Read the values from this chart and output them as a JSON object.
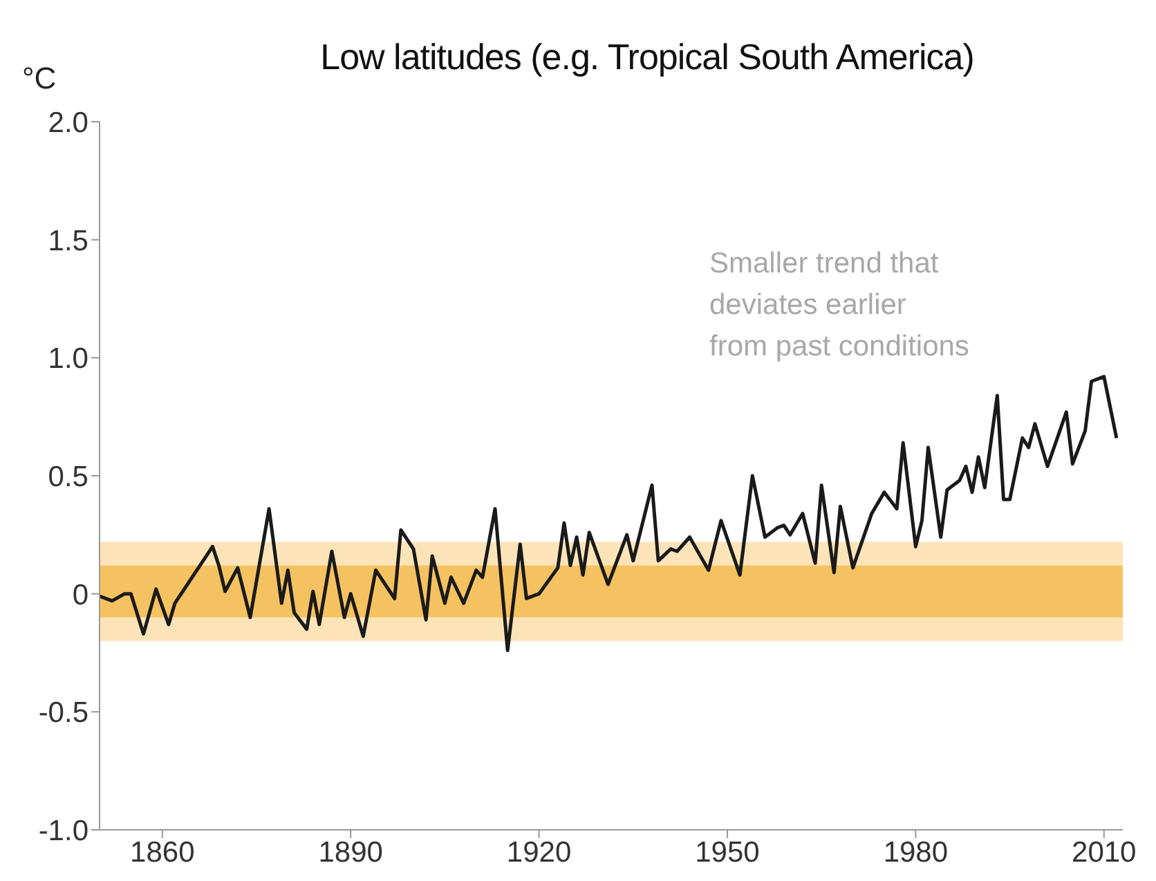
{
  "chart_data": {
    "type": "line",
    "title": "Low latitudes (e.g. Tropical South America)",
    "ylabel": "°C",
    "x": [
      1850,
      1852,
      1854,
      1855,
      1857,
      1859,
      1861,
      1862,
      1868,
      1869,
      1870,
      1872,
      1874,
      1877,
      1879,
      1880,
      1881,
      1883,
      1884,
      1885,
      1887,
      1889,
      1890,
      1892,
      1894,
      1897,
      1898,
      1900,
      1902,
      1903,
      1905,
      1906,
      1908,
      1910,
      1911,
      1913,
      1915,
      1917,
      1918,
      1920,
      1923,
      1924,
      1925,
      1926,
      1927,
      1928,
      1931,
      1934,
      1935,
      1938,
      1939,
      1941,
      1942,
      1944,
      1947,
      1949,
      1952,
      1954,
      1956,
      1958,
      1959,
      1960,
      1962,
      1964,
      1965,
      1967,
      1968,
      1970,
      1973,
      1975,
      1977,
      1978,
      1980,
      1981,
      1982,
      1984,
      1985,
      1987,
      1988,
      1989,
      1990,
      1991,
      1993,
      1994,
      1995,
      1997,
      1998,
      1999,
      2001,
      2004,
      2005,
      2007,
      2008,
      2010,
      2012
    ],
    "series": [
      {
        "color": "#1a1a1a",
        "values": [
          -0.01,
          -0.03,
          0.0,
          0.0,
          -0.17,
          0.02,
          -0.13,
          -0.04,
          0.2,
          0.12,
          0.01,
          0.11,
          -0.1,
          0.36,
          -0.04,
          0.1,
          -0.08,
          -0.15,
          0.01,
          -0.13,
          0.18,
          -0.1,
          0.0,
          -0.18,
          0.1,
          -0.02,
          0.27,
          0.19,
          -0.11,
          0.16,
          -0.04,
          0.07,
          -0.04,
          0.1,
          0.07,
          0.36,
          -0.24,
          0.21,
          -0.02,
          0.0,
          0.11,
          0.3,
          0.12,
          0.24,
          0.08,
          0.26,
          0.04,
          0.25,
          0.14,
          0.46,
          0.14,
          0.19,
          0.18,
          0.24,
          0.1,
          0.31,
          0.08,
          0.5,
          0.24,
          0.28,
          0.29,
          0.25,
          0.34,
          0.13,
          0.46,
          0.09,
          0.37,
          0.11,
          0.34,
          0.43,
          0.36,
          0.64,
          0.2,
          0.31,
          0.62,
          0.24,
          0.44,
          0.48,
          0.54,
          0.43,
          0.58,
          0.45,
          0.84,
          0.4,
          0.4,
          0.66,
          0.62,
          0.72,
          0.54,
          0.77,
          0.55,
          0.69,
          0.9,
          0.92,
          0.66
        ]
      }
    ],
    "bands": [
      {
        "axis": "y",
        "from": -0.2,
        "to": 0.22,
        "color": "#fde4b8"
      },
      {
        "axis": "y",
        "from": -0.1,
        "to": 0.12,
        "color": "#f5c261"
      }
    ],
    "annotations": [
      {
        "text": "Smaller trend that\ndeviates earlier\nfrom past conditions"
      }
    ],
    "xlim": [
      1850,
      2013
    ],
    "xticks": [
      1860,
      1890,
      1920,
      1950,
      1980,
      2010
    ],
    "ylim": [
      -1.0,
      2.0
    ],
    "yticks": [
      {
        "value": -1.0,
        "label": "-1.0"
      },
      -0.5,
      0,
      0.5,
      {
        "value": 1.0,
        "label": "1.0"
      },
      1.5,
      {
        "value": 2.0,
        "label": "2.0"
      }
    ],
    "grid": false,
    "legend": false,
    "marker": "none",
    "line_style": "solid"
  }
}
